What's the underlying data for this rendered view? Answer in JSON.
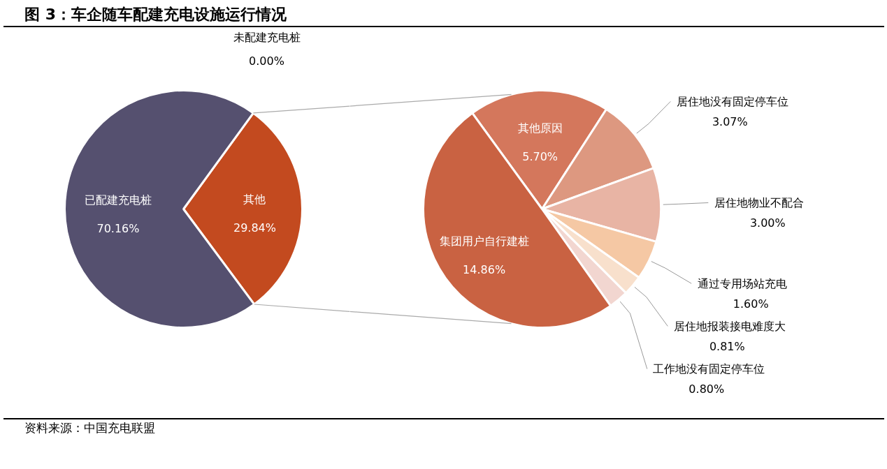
{
  "chart_data": [
    {
      "type": "pie",
      "title": "图 3：车企随车配建充电设施运行情况",
      "annotations": [
        "资料来源：中国充电联盟"
      ],
      "categories": [
        "其他",
        "已配建充电桩",
        "未配建充电桩"
      ],
      "values": [
        29.84,
        70.16,
        0.0
      ],
      "colors": [
        "#c34a1f",
        "#55506f",
        "#999999"
      ],
      "value_labels": [
        "29.84%",
        "70.16%",
        "0.00%"
      ]
    },
    {
      "type": "pie",
      "categories": [
        "其他原因",
        "居住地没有固定停车位",
        "居住地物业不配合",
        "通过专用场站充电",
        "居住地报装接电难度大",
        "工作地没有固定停车位",
        "集团用户自行建桩"
      ],
      "values": [
        5.7,
        3.07,
        3.0,
        1.6,
        0.81,
        0.8,
        14.86
      ],
      "colors": [
        "#d4775c",
        "#dd9880",
        "#e8b4a4",
        "#f5c8a4",
        "#f8e0cc",
        "#f2d6d0",
        "#c96242"
      ],
      "value_labels": [
        "5.70%",
        "3.07%",
        "3.00%",
        "1.60%",
        "0.81%",
        "0.80%",
        "14.86%"
      ]
    }
  ]
}
